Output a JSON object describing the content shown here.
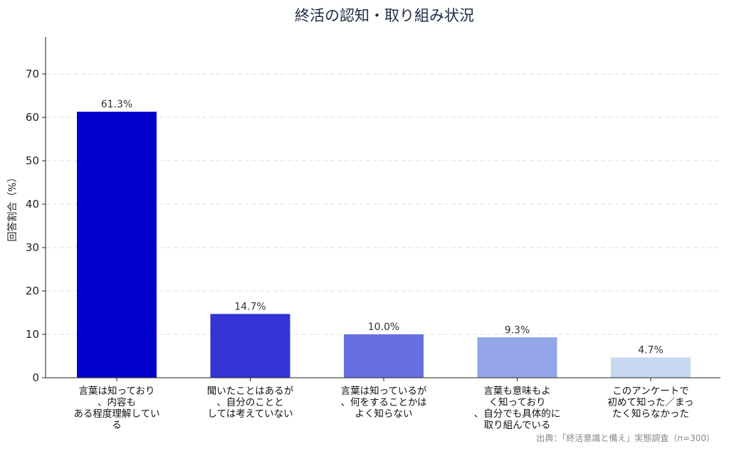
{
  "chart_data": {
    "type": "bar",
    "title": "終活の認知・取り組み状況",
    "ylabel": "回答割合（%）",
    "xlabel": "",
    "ylim": [
      0,
      79
    ],
    "yticks": [
      0,
      10,
      20,
      30,
      40,
      50,
      60,
      70
    ],
    "grid": "horizontal-dashed",
    "categories": [
      [
        "言葉は知っており",
        "、内容も",
        "ある程度理解してい",
        "る"
      ],
      [
        "聞いたことはあるが",
        "、自分のことと",
        "しては考えていない"
      ],
      [
        "言葉は知っているが",
        "、何をすることかは",
        "よく知らない"
      ],
      [
        "言葉も意味もよ",
        "く知っており",
        "、自分でも具体的に",
        "取り組んでいる"
      ],
      [
        "このアンケートで",
        "初めて知った／まっ",
        "たく知らなかった"
      ]
    ],
    "values": [
      61.3,
      14.7,
      10.0,
      9.3,
      4.7
    ],
    "value_labels": [
      "61.3%",
      "14.7%",
      "10.0%",
      "9.3%",
      "4.7%"
    ],
    "colors": [
      "#0000cd",
      "#3333d6",
      "#6670e0",
      "#94a6e8",
      "#c7d9f0"
    ],
    "source": "出典：「終活意識と備え」実態調査（n=300）"
  }
}
